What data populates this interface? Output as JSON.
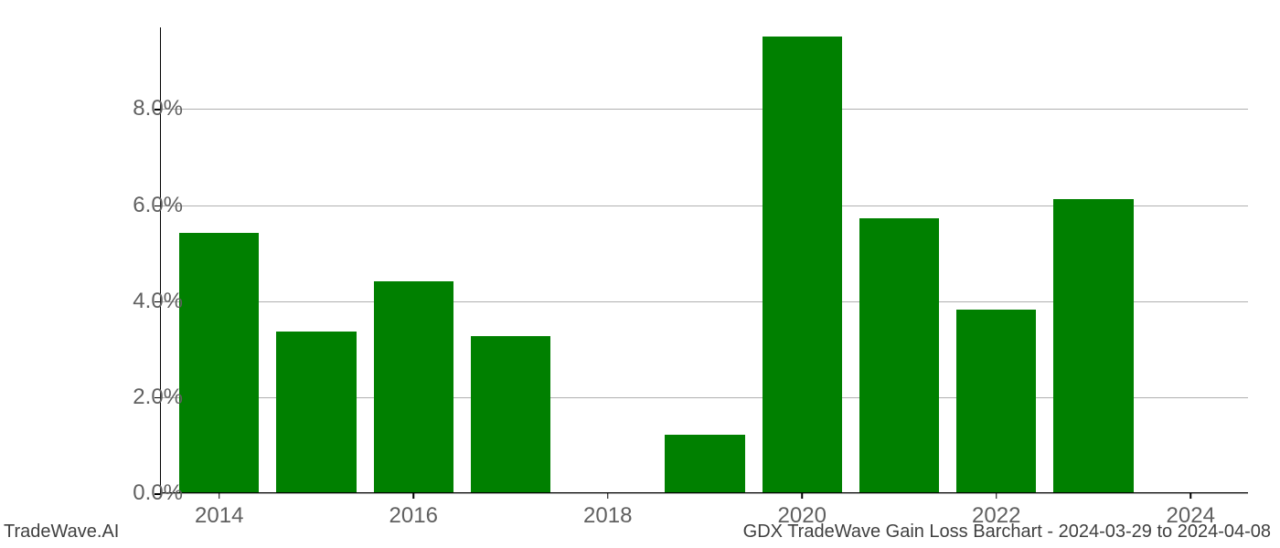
{
  "chart": {
    "type": "bar",
    "years": [
      2014,
      2015,
      2016,
      2017,
      2018,
      2019,
      2020,
      2021,
      2022,
      2023,
      2024
    ],
    "values": [
      5.4,
      3.35,
      4.4,
      3.25,
      0.0,
      1.2,
      9.5,
      5.7,
      3.8,
      6.1,
      0.0
    ],
    "bar_color": "#008000",
    "background_color": "#ffffff",
    "grid_color": "#b0b0b0",
    "axis_color": "#000000",
    "label_color": "#606060",
    "footer_color": "#404040",
    "y_ticks": [
      0.0,
      2.0,
      4.0,
      6.0,
      8.0
    ],
    "y_tick_labels": [
      "0.0%",
      "2.0%",
      "4.0%",
      "6.0%",
      "8.0%"
    ],
    "x_tick_years": [
      2014,
      2016,
      2018,
      2020,
      2022,
      2024
    ],
    "x_tick_labels": [
      "2014",
      "2016",
      "2018",
      "2020",
      "2022",
      "2024"
    ],
    "ylim_min": 0.0,
    "ylim_max": 9.7,
    "xlim_min": 2013.4,
    "xlim_max": 2024.6,
    "bar_width_years": 0.82,
    "label_fontsize": 24,
    "footer_fontsize": 20
  },
  "footer": {
    "left": "TradeWave.AI",
    "right": "GDX TradeWave Gain Loss Barchart - 2024-03-29 to 2024-04-08"
  }
}
